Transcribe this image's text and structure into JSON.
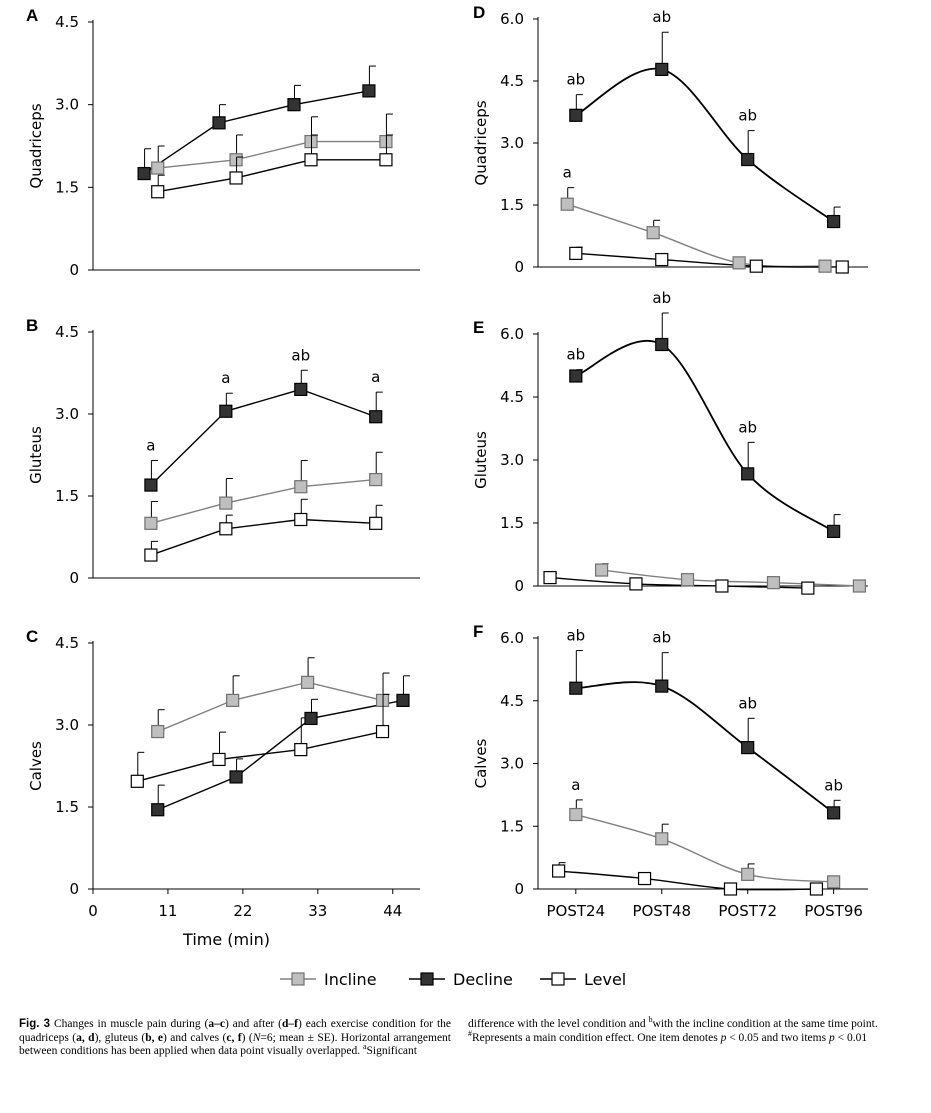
{
  "figure": {
    "legend": [
      {
        "name": "Incline",
        "fill": "#bfbfbf",
        "stroke": "#707070"
      },
      {
        "name": "Decline",
        "fill": "#333333",
        "stroke": "#000000"
      },
      {
        "name": "Level",
        "fill": "#ffffff",
        "stroke": "#000000"
      }
    ],
    "caption": {
      "fig_label": "Fig. 3",
      "text_before": " Changes in muscle pain during (",
      "p1": "a–c",
      "t2": ") and after (",
      "p2": "d–f",
      "t3": ") each exercise condition for the quadriceps (",
      "p3": "a, d",
      "t4": "), gluteus (",
      "p4": "b, e",
      "t5": ") and calves (",
      "p5": "c, f",
      "t6": ") (",
      "n_italic": "N",
      "t7": "=6; mean ± SE). Horizontal arrangement between conditions has been applied when data point visually overlapped. ",
      "sup_a": "a",
      "t8": "Significant",
      "r1": "difference with the level condition and ",
      "sup_b": "b",
      "r2": "with the incline condition at the same time point. ",
      "sup_hash": "#",
      "r3": "Represents a main condition effect. One item denotes ",
      "p_italic1": "p",
      "r4": " < 0.05 and two items ",
      "p_italic2": "p",
      "r5": " < 0.01"
    }
  },
  "chart_data": [
    {
      "panel": "A",
      "type": "line",
      "ylabel": "Quadriceps",
      "xlabel": "",
      "x_ticks": [],
      "ylim": [
        0,
        4.5
      ],
      "y_ticks": [
        "0",
        "1.5",
        "3.0",
        "4.5"
      ],
      "x": [
        8.5,
        19.5,
        30.5,
        41.5
      ],
      "series": [
        {
          "name": "Incline",
          "x": [
            9.5,
            21,
            32,
            43
          ],
          "values": [
            1.85,
            2.0,
            2.33,
            2.33
          ],
          "err": [
            0.4,
            0.45,
            0.45,
            0.5
          ],
          "annotations": [
            "",
            "",
            "",
            ""
          ]
        },
        {
          "name": "Decline",
          "x": [
            7.5,
            18.5,
            29.5,
            40.5
          ],
          "values": [
            1.75,
            2.67,
            3.0,
            3.25
          ],
          "err": [
            0.45,
            0.33,
            0.35,
            0.45
          ],
          "annotations": [
            "",
            "",
            "",
            ""
          ]
        },
        {
          "name": "Level",
          "x": [
            9.5,
            21,
            32,
            43
          ],
          "values": [
            1.42,
            1.67,
            2.0,
            2.0
          ],
          "err": [
            0.3,
            0.38,
            0.45,
            0.45
          ],
          "annotations": [
            "",
            "",
            "",
            ""
          ]
        }
      ]
    },
    {
      "panel": "B",
      "type": "line",
      "ylabel": "Gluteus",
      "xlabel": "",
      "x_ticks": [],
      "ylim": [
        0,
        4.5
      ],
      "y_ticks": [
        "0",
        "1.5",
        "3.0",
        "4.5"
      ],
      "series": [
        {
          "name": "Incline",
          "x": [
            8.5,
            19.5,
            30.5,
            41.5
          ],
          "values": [
            1.0,
            1.37,
            1.67,
            1.8
          ],
          "err": [
            0.4,
            0.45,
            0.48,
            0.5
          ],
          "annotations": [
            "",
            "",
            "",
            ""
          ]
        },
        {
          "name": "Decline",
          "x": [
            8.5,
            19.5,
            30.5,
            41.5
          ],
          "values": [
            1.7,
            3.05,
            3.45,
            2.95
          ],
          "err": [
            0.45,
            0.33,
            0.35,
            0.45
          ],
          "annotations": [
            "a",
            "a",
            "ab",
            "a"
          ]
        },
        {
          "name": "Level",
          "x": [
            8.5,
            19.5,
            30.5,
            41.5
          ],
          "values": [
            0.42,
            0.9,
            1.07,
            1.0
          ],
          "err": [
            0.25,
            0.25,
            0.37,
            0.33
          ],
          "annotations": [
            "",
            "",
            "",
            ""
          ]
        }
      ]
    },
    {
      "panel": "C",
      "type": "line",
      "ylabel": "Calves",
      "xlabel": "Time (min)",
      "x_ticks": [
        "0",
        "11",
        "22",
        "33",
        "44"
      ],
      "ylim": [
        0,
        4.5
      ],
      "y_ticks": [
        "0",
        "1.5",
        "3.0",
        "4.5"
      ],
      "series": [
        {
          "name": "Incline",
          "x": [
            9.5,
            20.5,
            31.5,
            42.5
          ],
          "values": [
            2.88,
            3.45,
            3.78,
            3.45
          ],
          "err": [
            0.4,
            0.45,
            0.45,
            0.5
          ],
          "annotations": [
            "",
            "",
            "",
            ""
          ]
        },
        {
          "name": "Decline",
          "x": [
            9.5,
            21,
            32,
            45.5
          ],
          "values": [
            1.45,
            2.05,
            3.12,
            3.45
          ],
          "err": [
            0.45,
            0.33,
            0.35,
            0.45
          ],
          "annotations": [
            "",
            "",
            "",
            ""
          ]
        },
        {
          "name": "Level",
          "x": [
            6.5,
            18.5,
            30.5,
            42.5
          ],
          "values": [
            1.97,
            2.37,
            2.55,
            2.88
          ],
          "err": [
            0.53,
            0.5,
            0.58,
            0.68
          ],
          "annotations": [
            "",
            "",
            "",
            ""
          ]
        }
      ]
    },
    {
      "panel": "D",
      "type": "line",
      "ylabel": "Quadriceps",
      "xlabel": "",
      "x_ticks": [],
      "ylim": [
        0,
        6.0
      ],
      "y_ticks": [
        "0",
        "1.5",
        "3.0",
        "4.5",
        "6.0"
      ],
      "series": [
        {
          "name": "Incline",
          "x": [
            -0.1,
            0.9,
            1.9,
            2.9
          ],
          "values": [
            1.52,
            0.83,
            0.1,
            0.02
          ],
          "err": [
            0.4,
            0.3,
            0,
            0
          ],
          "annotations": [
            "a",
            "",
            "",
            ""
          ]
        },
        {
          "name": "Decline",
          "x": [
            0,
            1,
            2,
            3
          ],
          "values": [
            3.67,
            4.78,
            2.6,
            1.1
          ],
          "err": [
            0.5,
            0.9,
            0.7,
            0.35
          ],
          "annotations": [
            "ab",
            "ab",
            "ab",
            ""
          ]
        },
        {
          "name": "Level",
          "x": [
            0,
            1,
            2.1,
            3.1
          ],
          "values": [
            0.33,
            0.18,
            0.02,
            0.0
          ],
          "err": [
            0.15,
            0,
            0,
            0
          ],
          "annotations": [
            "",
            "",
            "",
            ""
          ]
        }
      ]
    },
    {
      "panel": "E",
      "type": "line",
      "ylabel": "Gluteus",
      "xlabel": "",
      "x_ticks": [],
      "ylim": [
        0,
        6.0
      ],
      "y_ticks": [
        "0",
        "1.5",
        "3.0",
        "4.5",
        "6.0"
      ],
      "series": [
        {
          "name": "Incline",
          "x": [
            0.3,
            1.3,
            2.3,
            3.3
          ],
          "values": [
            0.38,
            0.15,
            0.08,
            0.0
          ],
          "err": [
            0.15,
            0,
            0,
            0
          ],
          "annotations": [
            "",
            "",
            "",
            ""
          ]
        },
        {
          "name": "Decline",
          "x": [
            0,
            1,
            2,
            3
          ],
          "values": [
            5.0,
            5.75,
            2.67,
            1.3
          ],
          "err": [
            0.15,
            0.75,
            0.75,
            0.4
          ],
          "annotations": [
            "ab",
            "ab",
            "ab",
            ""
          ]
        },
        {
          "name": "Level",
          "x": [
            -0.3,
            0.7,
            1.7,
            2.7
          ],
          "values": [
            0.2,
            0.05,
            0.0,
            -0.05
          ],
          "err": [
            0.1,
            0,
            0,
            0
          ],
          "annotations": [
            "",
            "",
            "",
            ""
          ]
        }
      ]
    },
    {
      "panel": "F",
      "type": "line",
      "ylabel": "Calves",
      "xlabel": "",
      "x_ticks": [
        "POST24",
        "POST48",
        "POST72",
        "POST96"
      ],
      "ylim": [
        0,
        6.0
      ],
      "y_ticks": [
        "0",
        "1.5",
        "3.0",
        "4.5",
        "6.0"
      ],
      "series": [
        {
          "name": "Incline",
          "x": [
            0,
            1,
            2,
            3
          ],
          "values": [
            1.78,
            1.2,
            0.35,
            0.17
          ],
          "err": [
            0.35,
            0.35,
            0.25,
            0
          ],
          "annotations": [
            "a",
            "",
            "",
            ""
          ]
        },
        {
          "name": "Decline",
          "x": [
            0,
            1,
            2,
            3
          ],
          "values": [
            4.8,
            4.85,
            3.38,
            1.82
          ],
          "err": [
            0.9,
            0.8,
            0.7,
            0.3
          ],
          "annotations": [
            "ab",
            "ab",
            "ab",
            "ab"
          ]
        },
        {
          "name": "Level",
          "x": [
            -0.2,
            0.8,
            1.8,
            2.8
          ],
          "values": [
            0.43,
            0.25,
            0.0,
            0.0
          ],
          "err": [
            0.2,
            0,
            0,
            0
          ],
          "annotations": [
            "",
            "",
            "",
            ""
          ]
        }
      ]
    }
  ]
}
